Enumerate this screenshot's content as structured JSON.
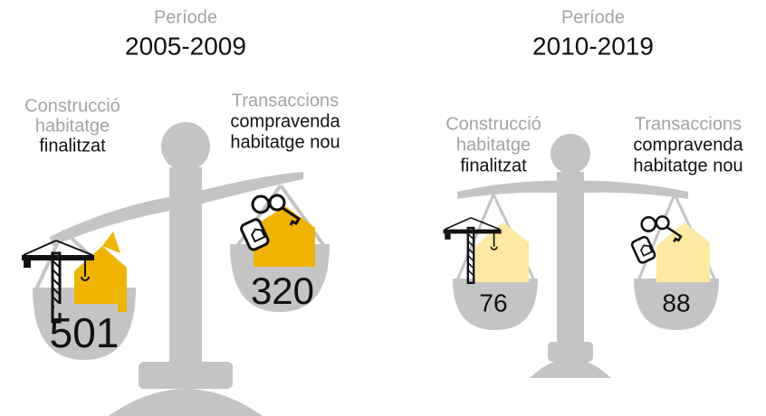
{
  "panels": [
    {
      "period_label": "Període",
      "period": "2005-2009",
      "left": {
        "lines": [
          "Construcció",
          "habitatge",
          "finalitzat"
        ],
        "value": "501"
      },
      "right": {
        "lines": [
          "Transaccions",
          "compravenda",
          "habitatge nou"
        ],
        "value": "320"
      }
    },
    {
      "period_label": "Període",
      "period": "2010-2019",
      "left": {
        "lines": [
          "Construcció",
          "habitatge",
          "finalitzat"
        ],
        "value": "76"
      },
      "right": {
        "lines": [
          "Transaccions",
          "compravenda",
          "habitatge nou"
        ],
        "value": "88"
      }
    }
  ]
}
